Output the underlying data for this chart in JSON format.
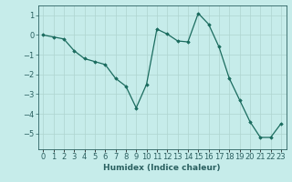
{
  "x": [
    0,
    1,
    2,
    3,
    4,
    5,
    6,
    7,
    8,
    9,
    10,
    11,
    12,
    13,
    14,
    15,
    16,
    17,
    18,
    19,
    20,
    21,
    22,
    23
  ],
  "y": [
    0.0,
    -0.1,
    -0.2,
    -0.8,
    -1.2,
    -1.35,
    -1.5,
    -2.2,
    -2.6,
    -3.7,
    -2.5,
    0.3,
    0.05,
    -0.3,
    -0.35,
    1.1,
    0.55,
    -0.6,
    -2.2,
    -3.3,
    -4.4,
    -5.2,
    -5.2,
    -4.5
  ],
  "line_color": "#1a6b5e",
  "marker": "D",
  "marker_size": 1.8,
  "bg_color": "#c6ecea",
  "grid_color": "#afd4d0",
  "axis_color": "#2a6060",
  "xlabel": "Humidex (Indice chaleur)",
  "ylabel": "",
  "ylim": [
    -5.8,
    1.5
  ],
  "xlim": [
    -0.5,
    23.5
  ],
  "yticks": [
    -5,
    -4,
    -3,
    -2,
    -1,
    0,
    1
  ],
  "xtick_labels": [
    "0",
    "1",
    "2",
    "3",
    "4",
    "5",
    "6",
    "7",
    "8",
    "9",
    "10",
    "11",
    "12",
    "13",
    "14",
    "15",
    "16",
    "17",
    "18",
    "19",
    "20",
    "21",
    "22",
    "23"
  ],
  "xlabel_fontsize": 6.5,
  "tick_fontsize": 6.0,
  "linewidth": 0.9
}
